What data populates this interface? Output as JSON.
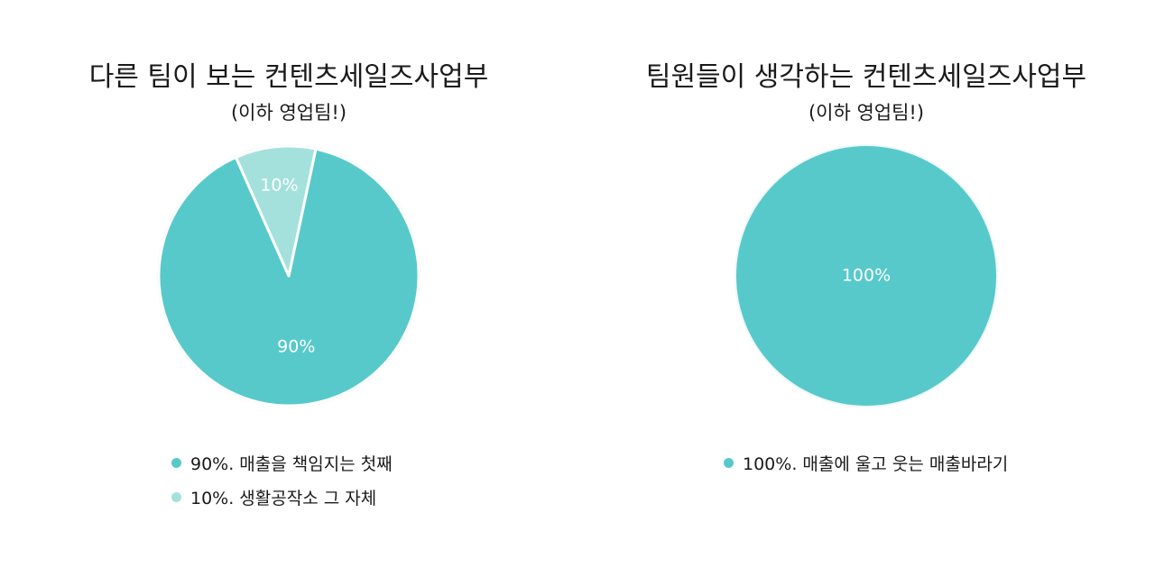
{
  "charts": {
    "left": {
      "title": "다른 팀이 보는 컨텐츠세일즈사업부",
      "subtitle": "(이하 영업팀!)"
    },
    "right": {
      "title": "팀원들이 생각하는 컨텐츠세일즈사업부",
      "subtitle": "(이하 영업팀!)"
    }
  },
  "chart_data": [
    {
      "type": "pie",
      "title": "다른 팀이 보는 컨텐츠세일즈사업부",
      "subtitle": "(이하 영업팀!)",
      "categories": [
        "90%. 매출을 책임지는 첫째",
        "10%. 생활공작소 그 자체"
      ],
      "values": [
        90,
        10
      ],
      "data_labels": [
        "90%",
        "10%"
      ],
      "colors": [
        "#57c9cb",
        "#a4e1dc"
      ],
      "legend_position": "bottom"
    },
    {
      "type": "pie",
      "title": "팀원들이 생각하는 컨텐츠세일즈사업부",
      "subtitle": "(이하 영업팀!)",
      "categories": [
        "100%. 매출에 울고 웃는 매출바라기"
      ],
      "values": [
        100
      ],
      "data_labels": [
        "100%"
      ],
      "colors": [
        "#57c9cb"
      ],
      "legend_position": "bottom"
    }
  ]
}
